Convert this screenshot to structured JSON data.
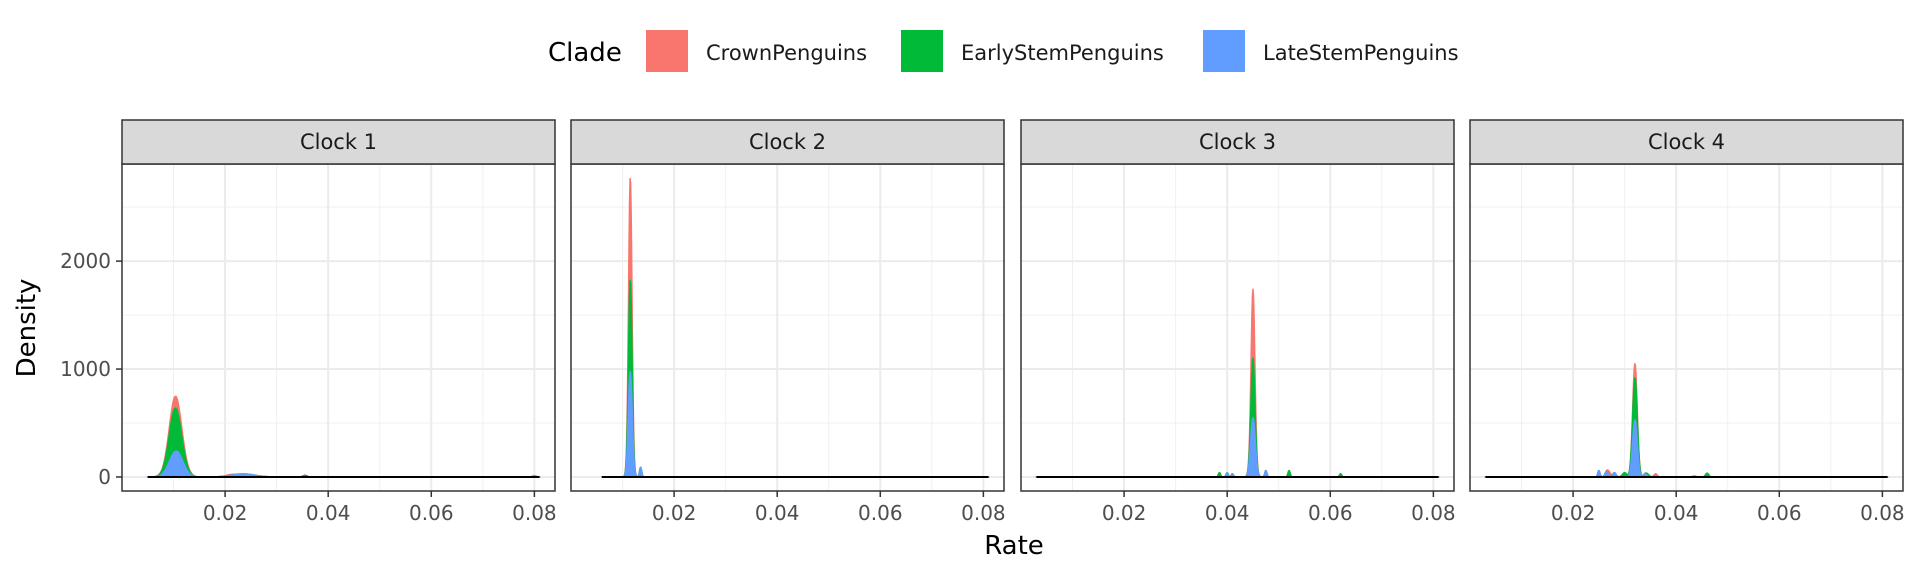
{
  "chart_data": {
    "type": "area",
    "xlabel": "Rate",
    "ylabel": "Density",
    "xlim": [
      0.0,
      0.084
    ],
    "ylim": [
      -130,
      2900
    ],
    "x_ticks": [
      0.02,
      0.04,
      0.06,
      0.08
    ],
    "x_tick_labels": [
      "0.02",
      "0.04",
      "0.06",
      "0.08"
    ],
    "y_ticks": [
      0,
      1000,
      2000
    ],
    "y_tick_labels": [
      "0",
      "1000",
      "2000"
    ],
    "grid": true,
    "stacked": true,
    "legend": {
      "title": "Clade",
      "position": "top",
      "entries": [
        {
          "name": "CrownPenguins",
          "color": "#F8766D"
        },
        {
          "name": "EarlyStemPenguins",
          "color": "#00BA38"
        },
        {
          "name": "LateStemPenguins",
          "color": "#619CFF"
        }
      ]
    },
    "panels": [
      {
        "label": "Clock 1",
        "range": [
          0.005,
          0.081
        ],
        "series": [
          {
            "name": "CrownPenguins",
            "color": "#F8766D",
            "components": [
              {
                "mu": 0.0105,
                "sd": 0.0013,
                "h": 110
              },
              {
                "mu": 0.021,
                "sd": 0.0008,
                "h": 8
              }
            ]
          },
          {
            "name": "EarlyStemPenguins",
            "color": "#00BA38",
            "components": [
              {
                "mu": 0.0103,
                "sd": 0.00115,
                "h": 400
              },
              {
                "mu": 0.0355,
                "sd": 0.0004,
                "h": 15
              }
            ]
          },
          {
            "name": "LateStemPenguins",
            "color": "#619CFF",
            "components": [
              {
                "mu": 0.0105,
                "sd": 0.0013,
                "h": 240
              },
              {
                "mu": 0.0235,
                "sd": 0.0022,
                "h": 28
              },
              {
                "mu": 0.08,
                "sd": 0.0004,
                "h": 10
              }
            ]
          }
        ]
      },
      {
        "label": "Clock 2",
        "range": [
          0.006,
          0.081
        ],
        "series": [
          {
            "name": "CrownPenguins",
            "color": "#F8766D",
            "components": [
              {
                "mu": 0.0115,
                "sd": 0.00032,
                "h": 950
              }
            ]
          },
          {
            "name": "EarlyStemPenguins",
            "color": "#00BA38",
            "components": [
              {
                "mu": 0.0115,
                "sd": 0.00032,
                "h": 850
              }
            ]
          },
          {
            "name": "LateStemPenguins",
            "color": "#619CFF",
            "components": [
              {
                "mu": 0.0115,
                "sd": 0.00038,
                "h": 980
              },
              {
                "mu": 0.0135,
                "sd": 0.0002,
                "h": 90
              }
            ]
          }
        ]
      },
      {
        "label": "Clock 3",
        "range": [
          0.003,
          0.081
        ],
        "series": [
          {
            "name": "CrownPenguins",
            "color": "#F8766D",
            "components": [
              {
                "mu": 0.045,
                "sd": 0.00035,
                "h": 640
              }
            ]
          },
          {
            "name": "EarlyStemPenguins",
            "color": "#00BA38",
            "components": [
              {
                "mu": 0.045,
                "sd": 0.00035,
                "h": 550
              },
              {
                "mu": 0.0385,
                "sd": 0.0002,
                "h": 40
              },
              {
                "mu": 0.052,
                "sd": 0.0002,
                "h": 60
              },
              {
                "mu": 0.062,
                "sd": 0.0002,
                "h": 30
              }
            ]
          },
          {
            "name": "LateStemPenguins",
            "color": "#619CFF",
            "components": [
              {
                "mu": 0.045,
                "sd": 0.00045,
                "h": 550
              },
              {
                "mu": 0.0475,
                "sd": 0.0002,
                "h": 60
              },
              {
                "mu": 0.04,
                "sd": 0.0002,
                "h": 40
              },
              {
                "mu": 0.041,
                "sd": 0.0002,
                "h": 30
              }
            ]
          }
        ]
      },
      {
        "label": "Clock 4",
        "range": [
          0.003,
          0.081
        ],
        "series": [
          {
            "name": "CrownPenguins",
            "color": "#F8766D",
            "components": [
              {
                "mu": 0.032,
                "sd": 0.0004,
                "h": 130
              },
              {
                "mu": 0.027,
                "sd": 0.0003,
                "h": 40
              },
              {
                "mu": 0.036,
                "sd": 0.0003,
                "h": 30
              },
              {
                "mu": 0.0435,
                "sd": 0.0003,
                "h": 10
              }
            ]
          },
          {
            "name": "EarlyStemPenguins",
            "color": "#00BA38",
            "components": [
              {
                "mu": 0.032,
                "sd": 0.00045,
                "h": 390
              },
              {
                "mu": 0.046,
                "sd": 0.0003,
                "h": 35
              },
              {
                "mu": 0.0345,
                "sd": 0.0003,
                "h": 20
              },
              {
                "mu": 0.03,
                "sd": 0.0004,
                "h": 40
              }
            ]
          },
          {
            "name": "LateStemPenguins",
            "color": "#619CFF",
            "components": [
              {
                "mu": 0.032,
                "sd": 0.00045,
                "h": 530
              },
              {
                "mu": 0.025,
                "sd": 0.0002,
                "h": 60
              },
              {
                "mu": 0.0265,
                "sd": 0.0003,
                "h": 50
              },
              {
                "mu": 0.028,
                "sd": 0.0003,
                "h": 40
              },
              {
                "mu": 0.034,
                "sd": 0.0003,
                "h": 30
              }
            ]
          }
        ]
      }
    ]
  }
}
